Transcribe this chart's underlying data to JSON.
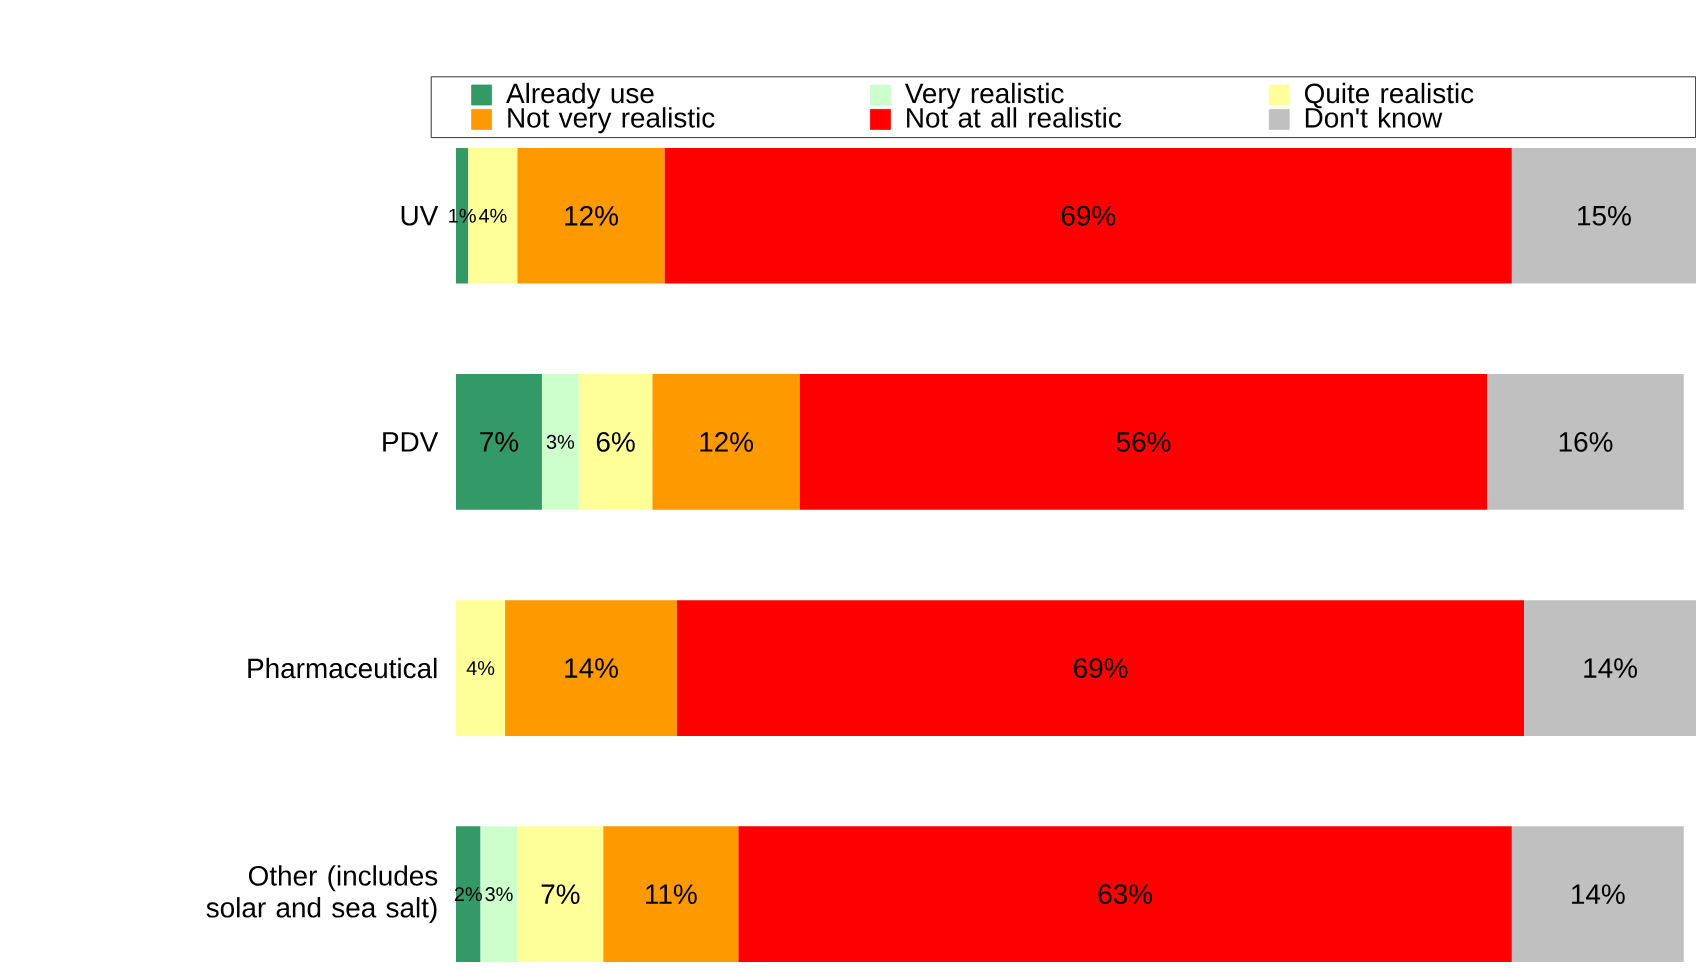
{
  "chart_data": {
    "type": "bar",
    "orientation": "horizontal",
    "stacked": true,
    "legend": "top",
    "categories": [
      "UV",
      "PDV",
      "Pharmaceutical",
      "Other (includes solar and sea salt)"
    ],
    "series": [
      {
        "name": "Already use",
        "color": "#339966",
        "values": [
          1,
          7,
          null,
          2
        ],
        "value_labels": [
          "1%",
          "7%",
          null,
          "2%"
        ]
      },
      {
        "name": "Very realistic",
        "color": "#ccffcc",
        "values": [
          null,
          3,
          null,
          3
        ],
        "value_labels": [
          null,
          "3%",
          null,
          "3%"
        ]
      },
      {
        "name": "Quite realistic",
        "color": "#ffff99",
        "values": [
          4,
          6,
          4,
          7
        ],
        "value_labels": [
          "4%",
          "6%",
          "4%",
          "7%"
        ]
      },
      {
        "name": "Not very realistic",
        "color": "#ff9900",
        "values": [
          12,
          12,
          14,
          11
        ],
        "value_labels": [
          "12%",
          "12%",
          "14%",
          "11%"
        ]
      },
      {
        "name": "Not at all realistic",
        "color": "#ff0000",
        "values": [
          69,
          56,
          69,
          63
        ],
        "value_labels": [
          "69%",
          "56%",
          "69%",
          "63%"
        ]
      },
      {
        "name": "Don't know",
        "color": "#c0c0c0",
        "values": [
          15,
          16,
          14,
          14
        ],
        "value_labels": [
          "15%",
          "16%",
          "14%",
          "14%"
        ]
      }
    ]
  }
}
